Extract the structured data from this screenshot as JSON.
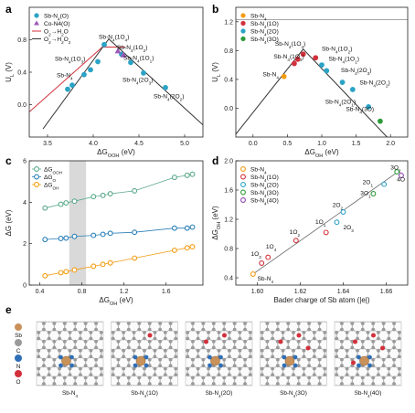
{
  "panels": {
    "a": "a",
    "b": "b",
    "c": "c",
    "d": "d",
    "e": "e"
  },
  "colors": {
    "blue": "#2aa3c6",
    "purple": "#9b59b6",
    "red": "#d2303b",
    "dark": "#333333",
    "orange": "#f39c12",
    "green": "#2e9a3a",
    "teal": "#5aa98a",
    "gray_line": "#888888"
  },
  "chart_data": [
    {
      "id": "a",
      "type": "scatter",
      "xlabel": "ΔG_OOH (eV)",
      "ylabel": "U_L (V)",
      "xlim": [
        3.3,
        5.2
      ],
      "ylim": [
        -0.4,
        1.2
      ],
      "xticks": [
        3.5,
        4.0,
        4.5,
        5.0
      ],
      "yticks": [
        0.0,
        0.4,
        0.8
      ],
      "legend": [
        "Sb-N4(O)",
        "Co-N4(O)",
        "O2→H2O",
        "O2→H2O2"
      ],
      "lines": [
        {
          "name": "O2→H2O",
          "color": "#d2303b",
          "points": [
            [
              3.3,
              -0.09
            ],
            [
              4.1,
              0.71
            ],
            [
              4.35,
              0.71
            ]
          ]
        },
        {
          "name": "O2→H2O2",
          "color": "#333333",
          "points": [
            [
              3.45,
              -0.3
            ],
            [
              4.17,
              0.81
            ],
            [
              5.2,
              -0.25
            ]
          ]
        }
      ],
      "series": [
        {
          "name": "Sb-N4(O)",
          "marker": "circle",
          "color": "#2aa3c6",
          "points": [
            [
              3.72,
              0.19
            ],
            [
              3.77,
              0.24
            ],
            [
              3.9,
              0.37
            ],
            [
              3.97,
              0.43
            ],
            [
              4.05,
              0.53
            ],
            [
              4.12,
              0.74
            ],
            [
              4.31,
              0.62
            ],
            [
              4.41,
              0.52
            ],
            [
              4.55,
              0.39
            ],
            [
              4.79,
              0.21
            ]
          ]
        },
        {
          "name": "Co-N4(O)",
          "marker": "triangle",
          "color": "#9b59b6",
          "points": [
            [
              4.27,
              0.66
            ],
            [
              4.33,
              0.61
            ]
          ]
        }
      ],
      "annotations": [
        {
          "text": "Sb-N4(1O4)",
          "x": 4.06,
          "y": 0.81
        },
        {
          "text": "Sb-N4(1O3)",
          "x": 3.58,
          "y": 0.54
        },
        {
          "text": "Sb-N4(1O2)",
          "x": 4.26,
          "y": 0.68
        },
        {
          "text": "Sb-N4(1O1)",
          "x": 4.33,
          "y": 0.55
        },
        {
          "text": "Sb-N4",
          "x": 3.6,
          "y": 0.34
        },
        {
          "text": "Sb-N4(2O3)",
          "x": 4.32,
          "y": 0.28
        },
        {
          "text": "Sb-N4(2O2)",
          "x": 4.66,
          "y": 0.08
        }
      ]
    },
    {
      "id": "b",
      "type": "scatter",
      "xlabel": "ΔG_OH (eV)",
      "ylabel": "U_L (V)",
      "xlim": [
        -0.25,
        2.25
      ],
      "ylim": [
        -0.4,
        1.4
      ],
      "xticks": [
        0.0,
        0.5,
        1.0,
        1.5,
        2.0
      ],
      "yticks": [
        0.0,
        0.4,
        0.8,
        1.2
      ],
      "hline": 1.23,
      "lines": [
        {
          "name": "volcano",
          "color": "#333333",
          "points": [
            [
              -0.25,
              -0.36
            ],
            [
              0.73,
              0.82
            ],
            [
              2.0,
              -0.45
            ]
          ]
        }
      ],
      "legend": [
        "Sb-N4",
        "Sb-N4(1O)",
        "Sb-N4(2O)",
        "Sb-N4(3O)"
      ],
      "series": [
        {
          "name": "Sb-N4",
          "color": "#f39c12",
          "points": [
            [
              0.45,
              0.44
            ]
          ]
        },
        {
          "name": "Sb-N4(1O)",
          "color": "#d2303b",
          "points": [
            [
              0.6,
              0.62
            ],
            [
              0.65,
              0.68
            ],
            [
              0.73,
              0.75
            ],
            [
              0.91,
              0.7
            ]
          ]
        },
        {
          "name": "Sb-N4(2O)",
          "color": "#2aa3c6",
          "points": [
            [
              1.0,
              0.6
            ],
            [
              1.07,
              0.52
            ],
            [
              1.3,
              0.36
            ],
            [
              1.45,
              0.26
            ],
            [
              1.68,
              0.02
            ]
          ]
        },
        {
          "name": "Sb-N4(3O)",
          "color": "#2e9a3a",
          "points": [
            [
              1.85,
              -0.18
            ]
          ]
        }
      ],
      "annotations": [
        {
          "text": "Sb-N4(1O4)",
          "x": 0.32,
          "y": 0.87
        },
        {
          "text": "Sb-N4(1O3)",
          "x": 0.3,
          "y": 0.69
        },
        {
          "text": "Sb-N4",
          "x": 0.14,
          "y": 0.44
        },
        {
          "text": "Sb-N4(1O2)",
          "x": 1.0,
          "y": 0.8
        },
        {
          "text": "Sb-N4(1O1)",
          "x": 1.1,
          "y": 0.66
        },
        {
          "text": "Sb-N4(2O3)",
          "x": 1.28,
          "y": 0.5
        },
        {
          "text": "Sb-N4(2O2)",
          "x": 1.55,
          "y": 0.33
        },
        {
          "text": "Sb-N4(2O1)",
          "x": 1.05,
          "y": 0.06
        },
        {
          "text": "Sb-N4(3O)",
          "x": 1.35,
          "y": -0.04
        }
      ]
    },
    {
      "id": "c",
      "type": "scatter",
      "xlabel": "ΔG_OH (eV)",
      "ylabel": "ΔG (eV)",
      "xlim": [
        0.3,
        1.95
      ],
      "ylim": [
        0.0,
        6.0
      ],
      "xticks": [
        0.4,
        0.8,
        1.2,
        1.6
      ],
      "yticks": [
        0,
        2,
        4,
        6
      ],
      "shaded_band": [
        0.68,
        0.84
      ],
      "legend": [
        "ΔG_OOH",
        "ΔG_O",
        "ΔG_OH"
      ],
      "x": [
        0.45,
        0.6,
        0.65,
        0.73,
        0.91,
        1.0,
        1.07,
        1.3,
        1.68,
        1.8,
        1.85
      ],
      "series": [
        {
          "name": "ΔG_OOH",
          "color": "#5aa98a",
          "values": [
            3.72,
            3.9,
            3.97,
            4.05,
            4.27,
            4.33,
            4.41,
            4.55,
            5.2,
            5.3,
            5.35
          ]
        },
        {
          "name": "ΔG_O",
          "color": "#2a7fb8",
          "values": [
            2.2,
            2.25,
            2.27,
            2.35,
            2.4,
            2.45,
            2.5,
            2.55,
            2.75,
            2.75,
            2.8
          ]
        },
        {
          "name": "ΔG_OH",
          "color": "#f39c12",
          "values": [
            0.45,
            0.6,
            0.65,
            0.73,
            0.91,
            1.0,
            1.07,
            1.3,
            1.68,
            1.8,
            1.85
          ]
        }
      ]
    },
    {
      "id": "d",
      "type": "scatter",
      "xlabel": "Bader charge of Sb atom (|e|)",
      "ylabel": "ΔG_OH (eV)",
      "xlim": [
        1.59,
        1.67
      ],
      "ylim": [
        0.3,
        2.0
      ],
      "xticks": [
        1.6,
        1.62,
        1.64,
        1.66
      ],
      "yticks": [
        0.4,
        0.8,
        1.2,
        1.6,
        2.0
      ],
      "fit_line": [
        [
          1.597,
          0.43
        ],
        [
          1.665,
          1.84
        ]
      ],
      "legend": [
        "Sb-N4",
        "Sb-N4(1O)",
        "Sb-N4(2O)",
        "Sb-N4(3O)",
        "Sb-N4(4O)"
      ],
      "series": [
        {
          "name": "Sb-N4",
          "color": "#f39c12",
          "points": [
            [
              1.598,
              0.45
            ]
          ]
        },
        {
          "name": "Sb-N4(1O)",
          "color": "#d2303b",
          "points": [
            [
              1.602,
              0.6
            ],
            [
              1.605,
              0.68
            ],
            [
              1.618,
              0.91
            ],
            [
              1.632,
              1.02
            ]
          ]
        },
        {
          "name": "Sb-N4(2O)",
          "color": "#2aa3c6",
          "points": [
            [
              1.637,
              1.16
            ],
            [
              1.64,
              1.3
            ],
            [
              1.659,
              1.68
            ]
          ]
        },
        {
          "name": "Sb-N4(3O)",
          "color": "#2e9a3a",
          "points": [
            [
              1.654,
              1.55
            ],
            [
              1.665,
              1.85
            ]
          ]
        },
        {
          "name": "Sb-N4(4O)",
          "color": "#8e44ad",
          "points": [
            [
              1.667,
              1.8
            ]
          ]
        }
      ],
      "annotations": [
        {
          "text": "Sb-N4",
          "x": 1.6,
          "y": 0.36
        },
        {
          "text": "1O3",
          "x": 1.597,
          "y": 0.7
        },
        {
          "text": "1O4",
          "x": 1.604,
          "y": 0.8
        },
        {
          "text": "1O2",
          "x": 1.615,
          "y": 1.0
        },
        {
          "text": "1O1",
          "x": 1.627,
          "y": 1.14
        },
        {
          "text": "2O2",
          "x": 1.635,
          "y": 1.37
        },
        {
          "text": "2O3",
          "x": 1.64,
          "y": 1.06
        },
        {
          "text": "2O1",
          "x": 1.649,
          "y": 1.68
        },
        {
          "text": "3O1",
          "x": 1.648,
          "y": 1.53
        },
        {
          "text": "3O2",
          "x": 1.662,
          "y": 1.88
        },
        {
          "text": "4O",
          "x": 1.665,
          "y": 1.72
        }
      ]
    }
  ],
  "structures": [
    {
      "caption": "Sb-N4",
      "o_count": 0
    },
    {
      "caption": "Sb-N4(1O)",
      "o_count": 1
    },
    {
      "caption": "Sb-N4(2O)",
      "o_count": 2
    },
    {
      "caption": "Sb-N4(3O)",
      "o_count": 3
    },
    {
      "caption": "Sb-N4(4O)",
      "o_count": 4
    }
  ],
  "atom_legend": [
    "Sb",
    "C",
    "N",
    "O"
  ]
}
